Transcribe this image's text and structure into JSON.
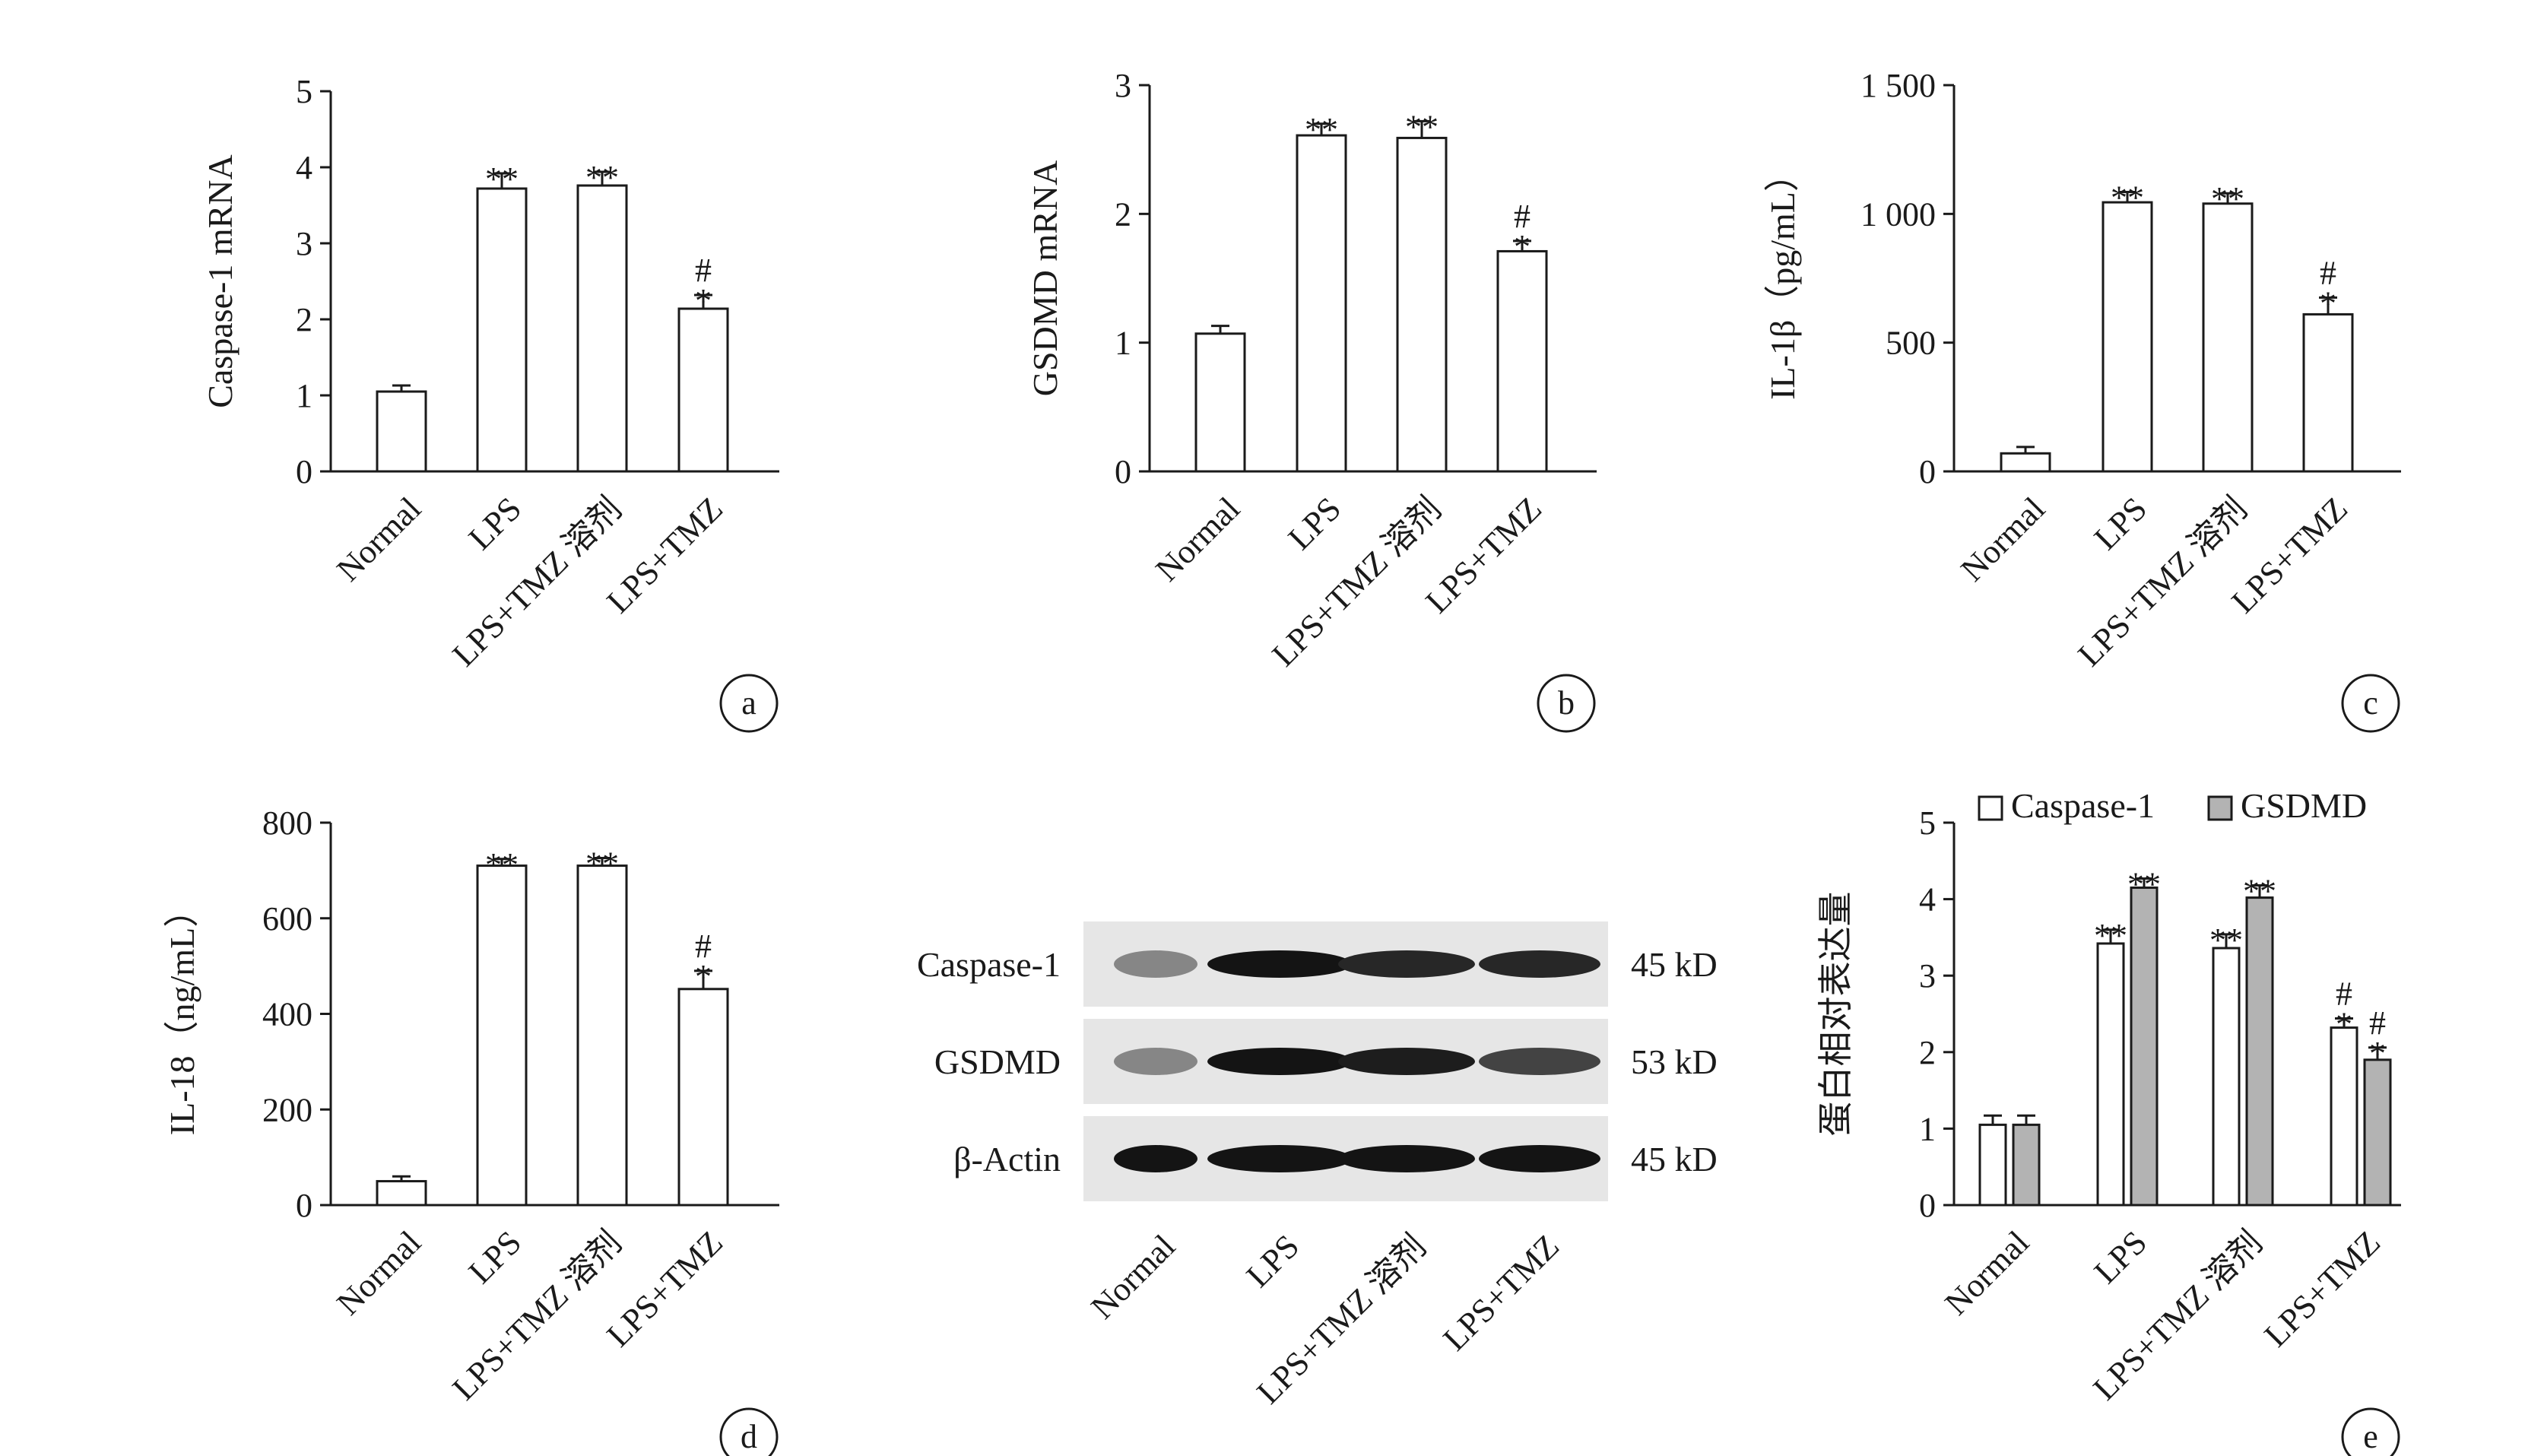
{
  "colors": {
    "open_bar": "#ffffff",
    "gsdmd_bar": "#b3b3b3",
    "axis": "#1a1a1a"
  },
  "chart_data": [
    {
      "panel": "a",
      "type": "bar",
      "ylabel": "Caspase-1 mRNA",
      "ylim": [
        0,
        5
      ],
      "yticks": [
        "0",
        "1",
        "2",
        "3",
        "4",
        "5"
      ],
      "categories": [
        "Normal",
        "LPS",
        "LPS+TMZ 溶剂",
        "LPS+TMZ"
      ],
      "values": [
        1.05,
        3.72,
        3.76,
        2.14
      ],
      "errors": [
        0.08,
        0.2,
        0.18,
        0.18
      ],
      "annotations": [
        [],
        [
          "**"
        ],
        [
          "**"
        ],
        [
          "*",
          "#"
        ]
      ]
    },
    {
      "panel": "b",
      "type": "bar",
      "ylabel": "GSDMD mRNA",
      "ylim": [
        0,
        3
      ],
      "yticks": [
        "0",
        "1",
        "2",
        "3"
      ],
      "categories": [
        "Normal",
        "LPS",
        "LPS+TMZ 溶剂",
        "LPS+TMZ"
      ],
      "values": [
        1.07,
        2.61,
        2.59,
        1.71
      ],
      "errors": [
        0.06,
        0.09,
        0.13,
        0.08
      ],
      "annotations": [
        [],
        [
          "**"
        ],
        [
          "**"
        ],
        [
          "*",
          "#"
        ]
      ]
    },
    {
      "panel": "c",
      "type": "bar",
      "ylabel": "IL-1β（pg/mL）",
      "ylim": [
        0,
        1500
      ],
      "yticks": [
        "0",
        "500",
        "1 000",
        "1 500"
      ],
      "categories": [
        "Normal",
        "LPS",
        "LPS+TMZ 溶剂",
        "LPS+TMZ"
      ],
      "values": [
        70,
        1045,
        1040,
        610
      ],
      "errors": [
        25,
        40,
        40,
        65
      ],
      "annotations": [
        [],
        [
          "**"
        ],
        [
          "**"
        ],
        [
          "*",
          "#"
        ]
      ]
    },
    {
      "panel": "d",
      "type": "bar",
      "ylabel": "IL-18（ng/mL）",
      "ylim": [
        0,
        800
      ],
      "yticks": [
        "0",
        "200",
        "400",
        "600",
        "800"
      ],
      "categories": [
        "Normal",
        "LPS",
        "LPS+TMZ 溶剂",
        "LPS+TMZ"
      ],
      "values": [
        50,
        710,
        710,
        452
      ],
      "errors": [
        10,
        14,
        16,
        38
      ],
      "annotations": [
        [],
        [
          "**"
        ],
        [
          "**"
        ],
        [
          "*",
          "#"
        ]
      ]
    },
    {
      "panel": "e",
      "type": "bar",
      "ylabel": "蛋白相对表达量",
      "ylim": [
        0,
        5
      ],
      "yticks": [
        "0",
        "1",
        "2",
        "3",
        "4",
        "5"
      ],
      "categories": [
        "Normal",
        "LPS",
        "LPS+TMZ 溶剂",
        "LPS+TMZ"
      ],
      "legend_position": "top",
      "series": [
        {
          "name": "Caspase-1",
          "values": [
            1.05,
            3.42,
            3.36,
            2.32
          ],
          "errors": [
            0.12,
            0.18,
            0.18,
            0.12
          ],
          "annotations": [
            [],
            [
              "**"
            ],
            [
              "**"
            ],
            [
              "*",
              "#"
            ]
          ]
        },
        {
          "name": "GSDMD",
          "values": [
            1.05,
            4.15,
            4.02,
            1.9
          ],
          "errors": [
            0.12,
            0.12,
            0.16,
            0.16
          ],
          "annotations": [
            [],
            [
              "**"
            ],
            [
              "**"
            ],
            [
              "*",
              "#"
            ]
          ]
        }
      ]
    }
  ],
  "western_blot": {
    "panel": "blot",
    "lanes": [
      "Normal",
      "LPS",
      "LPS+TMZ 溶剂",
      "LPS+TMZ"
    ],
    "rows": [
      {
        "protein": "Caspase-1",
        "size": "45 kD",
        "intensities": [
          0.35,
          0.95,
          0.85,
          0.85
        ]
      },
      {
        "protein": "GSDMD",
        "size": "53 kD",
        "intensities": [
          0.35,
          0.95,
          0.9,
          0.7
        ]
      },
      {
        "protein": "β-Actin",
        "size": "45 kD",
        "intensities": [
          0.95,
          0.95,
          0.95,
          0.95
        ]
      }
    ]
  }
}
